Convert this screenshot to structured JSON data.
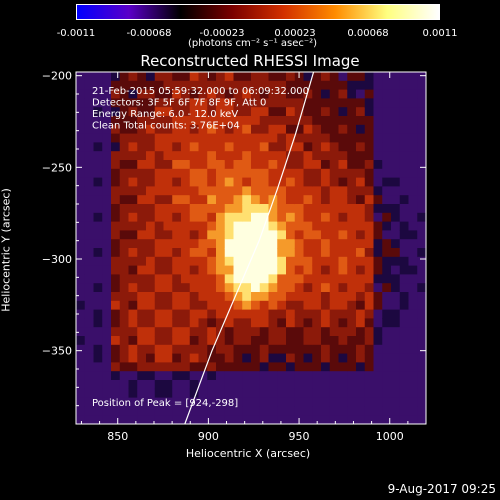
{
  "colorbar": {
    "ticks": [
      "-0.0011",
      "-0.00068",
      "-0.00023",
      "0.00023",
      "0.00068",
      "0.0011"
    ],
    "units": "(photons cm⁻² s⁻¹ asec⁻²)",
    "colors": [
      "#0000ff",
      "#5a00c8",
      "#000000",
      "#7a0000",
      "#d23000",
      "#ff8c00",
      "#ffff80",
      "#ffffff"
    ]
  },
  "chart_data": {
    "type": "heatmap",
    "title": "Reconstructed RHESSI Image",
    "xlabel": "Heliocentric X (arcsec)",
    "ylabel": "Heliocentric Y (arcsec)",
    "xlim": [
      827,
      1020
    ],
    "ylim": [
      -390,
      -198
    ],
    "xticks": [
      850,
      900,
      950,
      1000
    ],
    "yticks": [
      -200,
      -250,
      -300,
      -350
    ],
    "annotations": [
      "21-Feb-2015 05:59:32.000 to 06:09:32.000",
      "Detectors: 3F 5F 6F 7F 8F 9F, Att 0",
      "Energy Range: 6.0 - 12.0 keV",
      "Clean     Total counts: 3.76E+04"
    ],
    "peak_label": "Position of Peak = [924,-298]",
    "peak": [
      924,
      -298
    ],
    "limb_curve": [
      [
        887,
        -390
      ],
      [
        902,
        -350
      ],
      [
        915,
        -320
      ],
      [
        928,
        -290
      ],
      [
        938,
        -262
      ],
      [
        948,
        -232
      ],
      [
        958,
        -198
      ]
    ]
  },
  "timestamp": "9-Aug-2017 09:25"
}
